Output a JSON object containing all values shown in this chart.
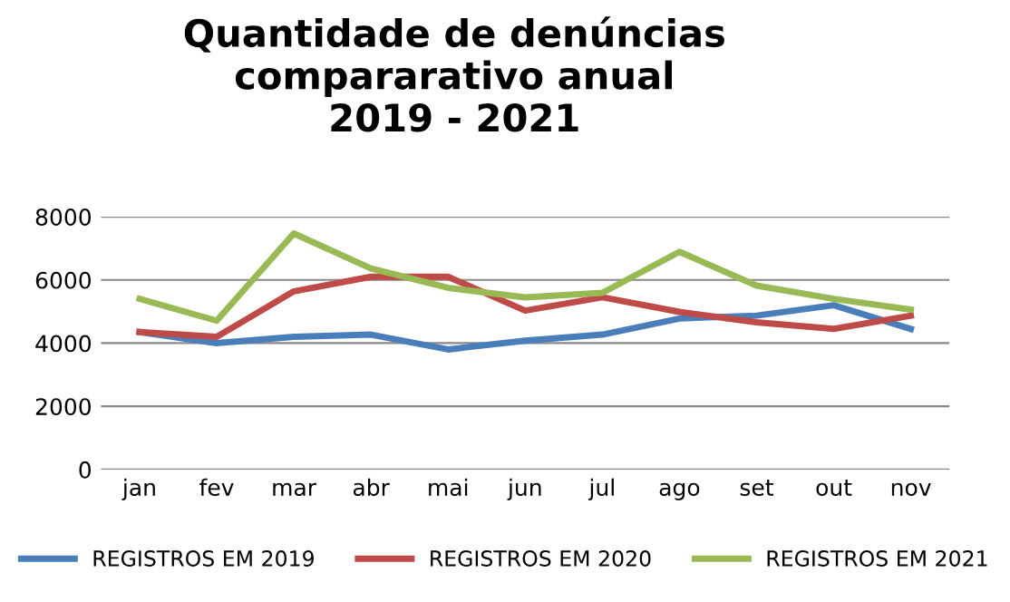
{
  "chart_data": {
    "type": "line",
    "title": "Quantidade de denúncias\ncompararativo anual\n2019 - 2021",
    "categories": [
      "jan",
      "fev",
      "mar",
      "abr",
      "mai",
      "jun",
      "jul",
      "ago",
      "set",
      "out",
      "nov"
    ],
    "series": [
      {
        "name": "REGISTROS EM 2019",
        "color": "#4a7ebb",
        "values": [
          4350,
          4000,
          4200,
          4270,
          3800,
          4080,
          4270,
          4780,
          4870,
          5200,
          4450
        ]
      },
      {
        "name": "REGISTROS EM 2020",
        "color": "#be4b48",
        "values": [
          4350,
          4200,
          5640,
          6100,
          6100,
          5030,
          5450,
          4990,
          4660,
          4450,
          4870
        ]
      },
      {
        "name": "REGISTROS EM 2021",
        "color": "#98b954",
        "values": [
          5400,
          4710,
          7470,
          6360,
          5750,
          5450,
          5590,
          6890,
          5820,
          5400,
          5060
        ]
      }
    ],
    "ylim": [
      0,
      8000
    ],
    "yticks": [
      0,
      2000,
      4000,
      6000,
      8000
    ],
    "grid": "y",
    "legend": "bottom",
    "marker": "none",
    "line_style": "solid"
  }
}
